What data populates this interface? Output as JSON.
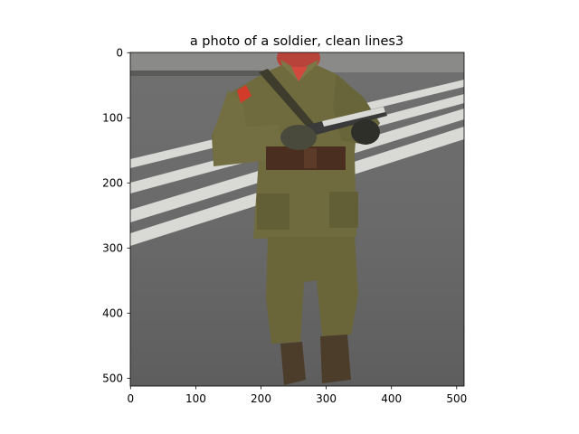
{
  "figure": {
    "title": "a photo of a soldier,  clean lines3",
    "x_axis": {
      "range": [
        0,
        512
      ],
      "ticks": [
        0,
        100,
        200,
        300,
        400,
        500
      ]
    },
    "y_axis": {
      "range": [
        0,
        512
      ],
      "inverted": true,
      "ticks": [
        0,
        100,
        200,
        300,
        400,
        500
      ]
    }
  },
  "image": {
    "subject": "soldier",
    "colors": {
      "uniform": "#6f6b3e",
      "uniform_shadow": "#565330",
      "uniform_highlight": "#85804d",
      "asphalt": "#6a6a6a",
      "asphalt_light": "#7a7a7a",
      "road_marking": "#d8d8d4",
      "belt": "#4a2e20",
      "boots": "#4c3d2a",
      "gloves": "#2f2f2a",
      "insignia": "#d23a2a",
      "face": "#b8433a",
      "rifle": "#3a3a3a"
    }
  }
}
